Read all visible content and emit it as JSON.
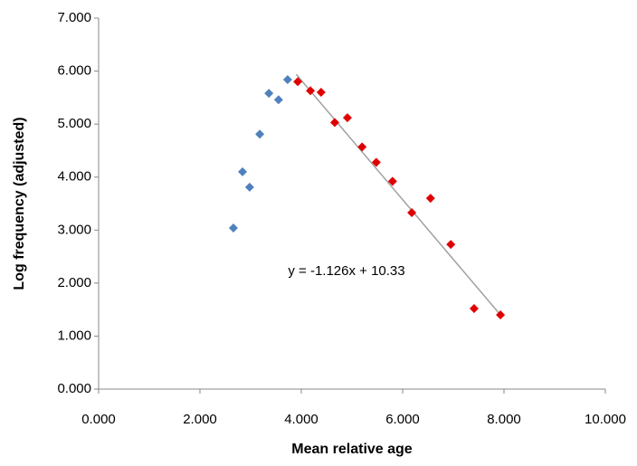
{
  "chart_data": {
    "type": "scatter",
    "x_label": "Mean relative age",
    "y_label": "Log frequency (adjusted)",
    "annotation": "y = -1.126x + 10.33",
    "xlim": [
      0,
      10
    ],
    "xticks": [
      {
        "value": 0,
        "label": "0.000"
      },
      {
        "value": 2,
        "label": "2.000"
      },
      {
        "value": 4,
        "label": "4.000"
      },
      {
        "value": 6,
        "label": "6.000"
      },
      {
        "value": 8,
        "label": "8.000"
      },
      {
        "value": 10,
        "label": "10.000"
      }
    ],
    "ylim": [
      0,
      7
    ],
    "yticks": [
      {
        "value": 0,
        "label": "0.000"
      },
      {
        "value": 1,
        "label": "1.000"
      },
      {
        "value": 2,
        "label": "2.000"
      },
      {
        "value": 3,
        "label": "3.000"
      },
      {
        "value": 4,
        "label": "4.000"
      },
      {
        "value": 5,
        "label": "5.000"
      },
      {
        "value": 6,
        "label": "6.000"
      },
      {
        "value": 7,
        "label": "7.000"
      }
    ],
    "grid": false,
    "series": [
      {
        "color": "#4f81bd",
        "x": [
          2.66,
          2.84,
          2.98,
          3.18,
          3.36,
          3.55,
          3.73
        ],
        "values": [
          3.04,
          4.1,
          3.81,
          4.81,
          5.58,
          5.46,
          5.84
        ]
      },
      {
        "color": "#e00000",
        "x": [
          3.93,
          4.18,
          4.39,
          4.66,
          4.91,
          5.2,
          5.48,
          5.8,
          6.18,
          6.55,
          6.95,
          7.41,
          7.93
        ],
        "values": [
          5.8,
          5.63,
          5.6,
          5.03,
          5.12,
          4.57,
          4.28,
          3.92,
          3.33,
          3.6,
          2.73,
          1.52,
          1.4
        ]
      }
    ],
    "trendline": {
      "color": "#a0a0a0",
      "x": [
        3.9,
        7.93
      ],
      "values": [
        5.94,
        1.4
      ]
    }
  }
}
